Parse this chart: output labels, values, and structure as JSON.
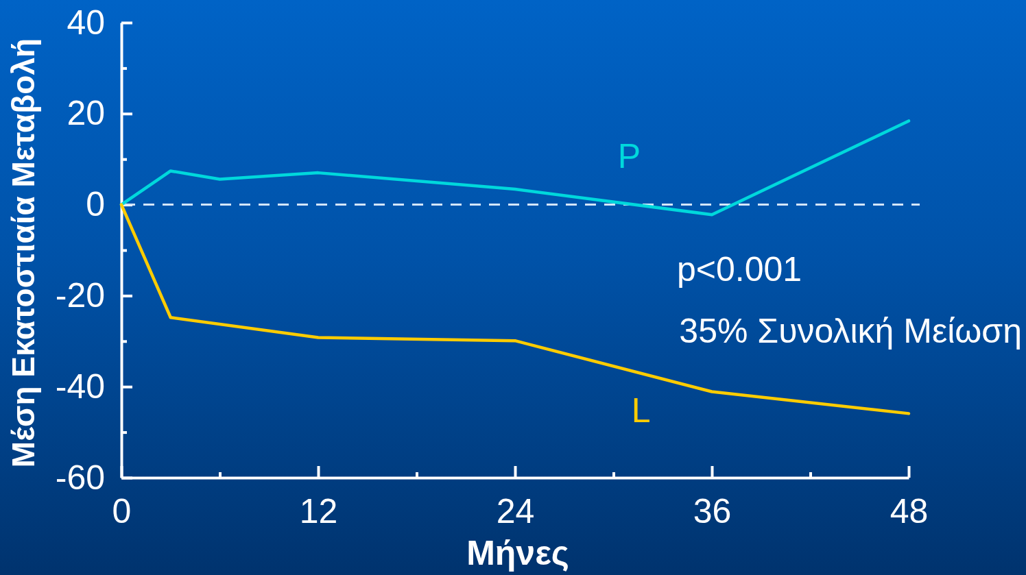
{
  "chart_data": {
    "type": "line",
    "xlabel": "Μήνες",
    "ylabel": "Μέση Εκατοστιαία Μεταβολή",
    "xlim": [
      0,
      48
    ],
    "xticks": [
      0,
      {
        "value": 6,
        "label": null
      },
      12,
      {
        "value": 18,
        "label": null
      },
      24,
      {
        "value": 30,
        "label": null
      },
      36,
      {
        "value": 42,
        "label": null
      },
      48
    ],
    "ylim": [
      -60,
      40
    ],
    "yticks": [
      -60,
      {
        "value": -50,
        "label": null
      },
      -40,
      {
        "value": -30,
        "label": null
      },
      -20,
      {
        "value": -10,
        "label": null
      },
      0,
      {
        "value": 10,
        "label": null
      },
      20,
      {
        "value": 30,
        "label": null
      },
      40
    ],
    "series": [
      {
        "name": "P",
        "color": "#00d8dc",
        "x": [
          0,
          3,
          6,
          12,
          24,
          36,
          48
        ],
        "values": [
          0,
          7.4,
          5.6,
          7.0,
          3.4,
          -2.2,
          18.4
        ]
      },
      {
        "name": "L",
        "color": "#ffcc00",
        "x": [
          0,
          3,
          12,
          24,
          36,
          48
        ],
        "values": [
          0,
          -24.8,
          -29.2,
          -29.9,
          -41.1,
          -45.9
        ]
      }
    ],
    "ref_lines": [
      {
        "axis": "y",
        "value": 0,
        "color": "#d4e6fa",
        "line_style": "dashed"
      }
    ],
    "annotations": [
      "p<0.001",
      "35% Συνολική Μείωση"
    ]
  }
}
